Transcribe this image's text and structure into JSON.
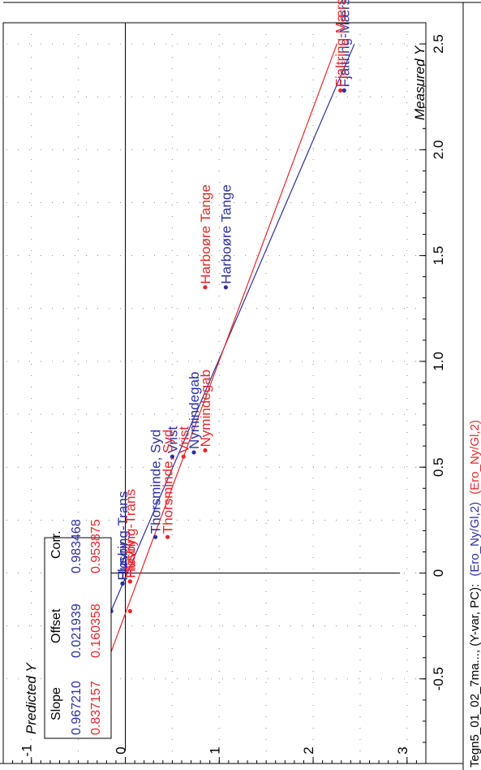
{
  "footer": {
    "prefix": "Tegn5_01_02_7ma..., (Y-var, PC):",
    "series_blue": "(Ero_Ny/Gl,2)",
    "series_red": "(Ero_Ny/Gl,2)"
  },
  "colors": {
    "blue": "#2b2fa0",
    "red": "#e8262b",
    "black": "#000000"
  },
  "chart_data": {
    "type": "scatter",
    "xlabel": "Measured Y",
    "ylabel": "Predicted Y",
    "xlim": [
      -0.9,
      2.6
    ],
    "ylim": [
      -1.3,
      3.2
    ],
    "x_ticks": [
      "-0.5",
      "0",
      "0.5",
      "1.0",
      "1.5",
      "2.0",
      "2.5"
    ],
    "y_ticks": [
      "-1",
      "0",
      "1",
      "2",
      "3"
    ],
    "grid": true,
    "stats_table": {
      "headers": [
        "Slope",
        "Offset",
        "Corr."
      ],
      "rows": [
        {
          "series": "blue",
          "values": [
            "0.967210",
            "0.021939",
            "0.983468"
          ]
        },
        {
          "series": "red",
          "values": [
            "0.837157",
            "0.160358",
            "0.953875"
          ]
        }
      ]
    },
    "series": [
      {
        "color": "blue",
        "fit": {
          "slope": 0.96721,
          "offset": 0.021939
        },
        "points": [
          {
            "label": "",
            "x": -0.18,
            "y": -0.15
          },
          {
            "label": "Husby",
            "x": -0.05,
            "y": -0.03
          },
          {
            "label": "Fløvring-Trans",
            "x": -0.05,
            "y": -0.03
          },
          {
            "label": "Thorsminde, Syd",
            "x": 0.17,
            "y": 0.32
          },
          {
            "label": "Vrist",
            "x": 0.55,
            "y": 0.5
          },
          {
            "label": "Nymindegab",
            "x": 0.57,
            "y": 0.73
          },
          {
            "label": "Harboøre Tange",
            "x": 1.35,
            "y": 1.07
          },
          {
            "label": "Fjaltring-Mærsk",
            "x": 2.28,
            "y": 2.33
          }
        ]
      },
      {
        "color": "red",
        "fit": {
          "slope": 0.837157,
          "offset": 0.160358
        },
        "points": [
          {
            "label": "",
            "x": -0.18,
            "y": 0.05
          },
          {
            "label": "Husby",
            "x": -0.04,
            "y": 0.05
          },
          {
            "label": "Fløvring-Trans",
            "x": -0.04,
            "y": 0.05
          },
          {
            "label": "Thorsminde, Syd",
            "x": 0.17,
            "y": 0.45
          },
          {
            "label": "Vrist",
            "x": 0.55,
            "y": 0.62
          },
          {
            "label": "Nymindegab",
            "x": 0.58,
            "y": 0.85
          },
          {
            "label": "Harboøre Tange",
            "x": 1.35,
            "y": 0.85
          },
          {
            "label": "Fjaltring-Mærsk",
            "x": 2.28,
            "y": 2.29
          }
        ]
      }
    ]
  }
}
